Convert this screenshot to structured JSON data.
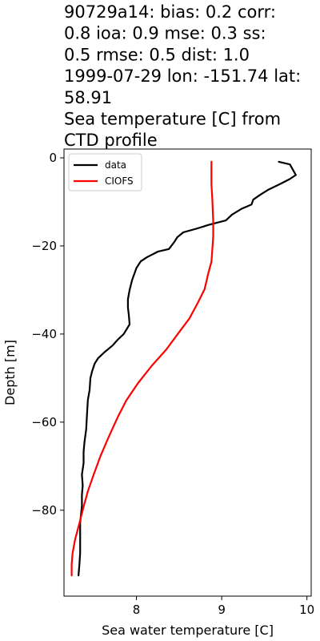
{
  "chart_data": {
    "type": "line",
    "title_lines": [
      "90729a14: bias: 0.2  corr:",
      "0.8  ioa: 0.9  mse: 0.3  ss:",
      "0.5  rmse: 0.5  dist: 1.0",
      "1999-07-29 lon: -151.74 lat:",
      "58.91",
      "Sea temperature [C] from",
      "CTD profile"
    ],
    "xlabel": "Sea water temperature [C]",
    "ylabel": "Depth [m]",
    "xlim": [
      7.15,
      10.05
    ],
    "ylim": [
      -99.5,
      2.0
    ],
    "xticks": [
      8,
      9,
      10
    ],
    "xtick_labels": [
      "8",
      "9",
      "10"
    ],
    "yticks": [
      0,
      -20,
      -40,
      -60,
      -80
    ],
    "ytick_labels": [
      "0",
      "−20",
      "−40",
      "−60",
      "−80"
    ],
    "legend_position": "upper-left",
    "series": [
      {
        "name": "data",
        "color": "#000000",
        "points": [
          [
            9.67,
            -0.9
          ],
          [
            9.8,
            -1.5
          ],
          [
            9.87,
            -3.9
          ],
          [
            9.8,
            -4.8
          ],
          [
            9.7,
            -5.8
          ],
          [
            9.55,
            -7.2
          ],
          [
            9.45,
            -8.4
          ],
          [
            9.37,
            -9.5
          ],
          [
            9.35,
            -10.6
          ],
          [
            9.23,
            -11.6
          ],
          [
            9.12,
            -12.9
          ],
          [
            9.05,
            -14.2
          ],
          [
            8.85,
            -15.2
          ],
          [
            8.7,
            -16.1
          ],
          [
            8.55,
            -16.9
          ],
          [
            8.48,
            -18.0
          ],
          [
            8.44,
            -19.2
          ],
          [
            8.38,
            -20.7
          ],
          [
            8.25,
            -21.3
          ],
          [
            8.12,
            -22.6
          ],
          [
            8.05,
            -23.5
          ],
          [
            8.0,
            -25.0
          ],
          [
            7.98,
            -26.1
          ],
          [
            7.95,
            -27.7
          ],
          [
            7.92,
            -30.0
          ],
          [
            7.9,
            -32.1
          ],
          [
            7.9,
            -34.0
          ],
          [
            7.91,
            -35.6
          ],
          [
            7.92,
            -37.8
          ],
          [
            7.85,
            -40.0
          ],
          [
            7.78,
            -41.3
          ],
          [
            7.72,
            -42.6
          ],
          [
            7.62,
            -44.2
          ],
          [
            7.55,
            -45.5
          ],
          [
            7.51,
            -46.7
          ],
          [
            7.48,
            -48.4
          ],
          [
            7.46,
            -50.0
          ],
          [
            7.45,
            -52.7
          ],
          [
            7.43,
            -55.0
          ],
          [
            7.42,
            -58.1
          ],
          [
            7.41,
            -61.7
          ],
          [
            7.39,
            -64.5
          ],
          [
            7.38,
            -66.8
          ],
          [
            7.38,
            -69.3
          ],
          [
            7.36,
            -71.9
          ],
          [
            7.37,
            -74.4
          ],
          [
            7.36,
            -76.5
          ],
          [
            7.36,
            -79.0
          ],
          [
            7.34,
            -82.8
          ],
          [
            7.34,
            -86.3
          ],
          [
            7.34,
            -89.7
          ],
          [
            7.33,
            -92.5
          ],
          [
            7.32,
            -94.8
          ]
        ]
      },
      {
        "name": "CIOFS",
        "color": "#ff0000",
        "points": [
          [
            8.88,
            -0.9
          ],
          [
            8.88,
            -3.4
          ],
          [
            8.88,
            -6.0
          ],
          [
            8.89,
            -9.4
          ],
          [
            8.9,
            -14.3
          ],
          [
            8.9,
            -17.9
          ],
          [
            8.89,
            -20.8
          ],
          [
            8.88,
            -23.6
          ],
          [
            8.84,
            -26.4
          ],
          [
            8.8,
            -29.8
          ],
          [
            8.72,
            -32.9
          ],
          [
            8.62,
            -36.5
          ],
          [
            8.5,
            -39.6
          ],
          [
            8.35,
            -43.5
          ],
          [
            8.18,
            -47.2
          ],
          [
            8.02,
            -51.1
          ],
          [
            7.88,
            -55.1
          ],
          [
            7.78,
            -58.9
          ],
          [
            7.68,
            -63.1
          ],
          [
            7.58,
            -67.6
          ],
          [
            7.5,
            -71.8
          ],
          [
            7.43,
            -75.7
          ],
          [
            7.38,
            -79.2
          ],
          [
            7.33,
            -83.0
          ],
          [
            7.28,
            -86.6
          ],
          [
            7.25,
            -89.8
          ],
          [
            7.24,
            -92.3
          ],
          [
            7.24,
            -94.8
          ]
        ]
      }
    ]
  }
}
